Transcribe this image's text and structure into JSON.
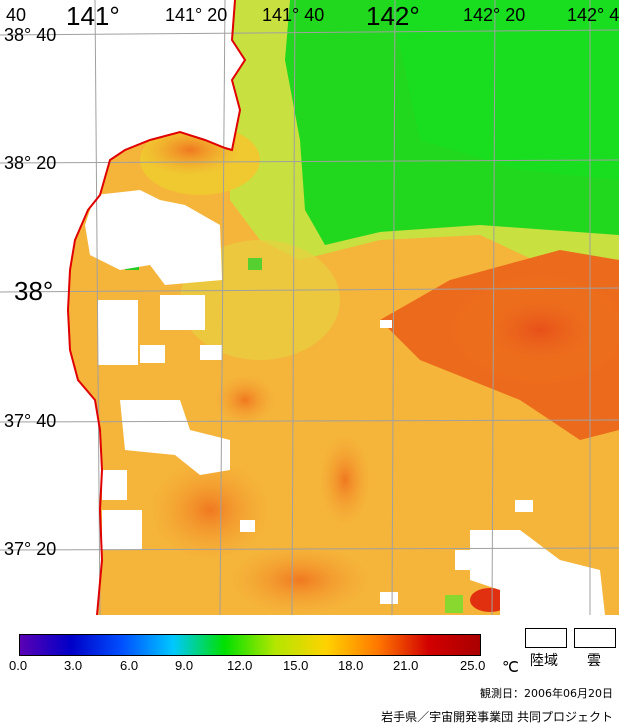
{
  "map": {
    "lon_labels": [
      "40",
      "141°",
      "141° 20",
      "141° 40",
      "142°",
      "142° 20",
      "142° 4"
    ],
    "lat_labels": [
      "38° 40",
      "38° 20",
      "38°",
      "37° 40",
      "37° 20"
    ]
  },
  "colorbar": {
    "ticks": [
      "0.0",
      "3.0",
      "6.0",
      "9.0",
      "12.0",
      "15.0",
      "18.0",
      "21.0",
      "25.0"
    ],
    "unit": "℃",
    "colors": [
      "#5a00b4",
      "#0000c8",
      "#0050ff",
      "#00c8ff",
      "#00e000",
      "#b4e600",
      "#ffd200",
      "#ff7800",
      "#d20000",
      "#aa0000"
    ]
  },
  "legend": {
    "land_label": "陸域",
    "cloud_label": "雲"
  },
  "footer": {
    "observation_date": "観測日：2006年06月20日",
    "credit": "岩手県／宇宙開発事業団 共同プロジェクト"
  },
  "style": {
    "coastline_color": "#e00000",
    "grid_color": "#a0a0a0"
  }
}
